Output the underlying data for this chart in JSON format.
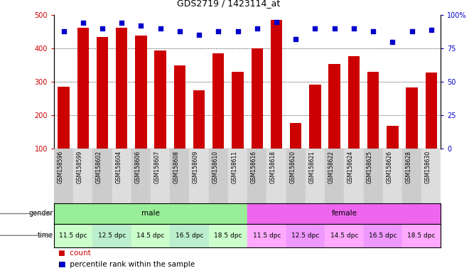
{
  "title": "GDS2719 / 1423114_at",
  "samples": [
    "GSM158596",
    "GSM158599",
    "GSM158602",
    "GSM158604",
    "GSM158606",
    "GSM158607",
    "GSM158608",
    "GSM158609",
    "GSM158610",
    "GSM158611",
    "GSM158616",
    "GSM158618",
    "GSM158620",
    "GSM158621",
    "GSM158622",
    "GSM158624",
    "GSM158625",
    "GSM158626",
    "GSM158628",
    "GSM158630"
  ],
  "bar_values": [
    285,
    462,
    435,
    462,
    438,
    395,
    350,
    275,
    385,
    330,
    400,
    485,
    178,
    292,
    353,
    378,
    330,
    168,
    283,
    327
  ],
  "percentile_values": [
    88,
    94,
    90,
    94,
    92,
    90,
    88,
    85,
    88,
    88,
    90,
    95,
    82,
    90,
    90,
    90,
    88,
    80,
    88,
    89
  ],
  "bar_color": "#cc0000",
  "percentile_color": "#0000cc",
  "ylim_left": [
    100,
    500
  ],
  "ylim_right": [
    0,
    100
  ],
  "yticks_left": [
    100,
    200,
    300,
    400,
    500
  ],
  "yticks_right": [
    0,
    25,
    50,
    75,
    100
  ],
  "ytick_labels_right": [
    "0",
    "25",
    "50",
    "75",
    "100%"
  ],
  "grid_values": [
    200,
    300,
    400
  ],
  "gender_male_color": "#99ee99",
  "gender_female_color": "#ee66ee",
  "time_groups_male": [
    "11.5 dpc",
    "12.5 dpc",
    "14.5 dpc",
    "16.5 dpc",
    "18.5 dpc"
  ],
  "time_groups_female": [
    "11.5 dpc",
    "12.5 dpc",
    "14.5 dpc",
    "16.5 dpc",
    "18.5 dpc"
  ],
  "time_colors_male": [
    "#ccffcc",
    "#bbeecc"
  ],
  "time_colors_female": [
    "#ffaaff",
    "#ee99ff"
  ],
  "legend_count_color": "#cc0000",
  "legend_percentile_color": "#0000cc",
  "bar_width": 0.6,
  "title_fontsize": 9,
  "tick_fontsize": 7,
  "sample_fontsize": 5.5,
  "row_fontsize": 7.5,
  "time_fontsize": 6.5
}
